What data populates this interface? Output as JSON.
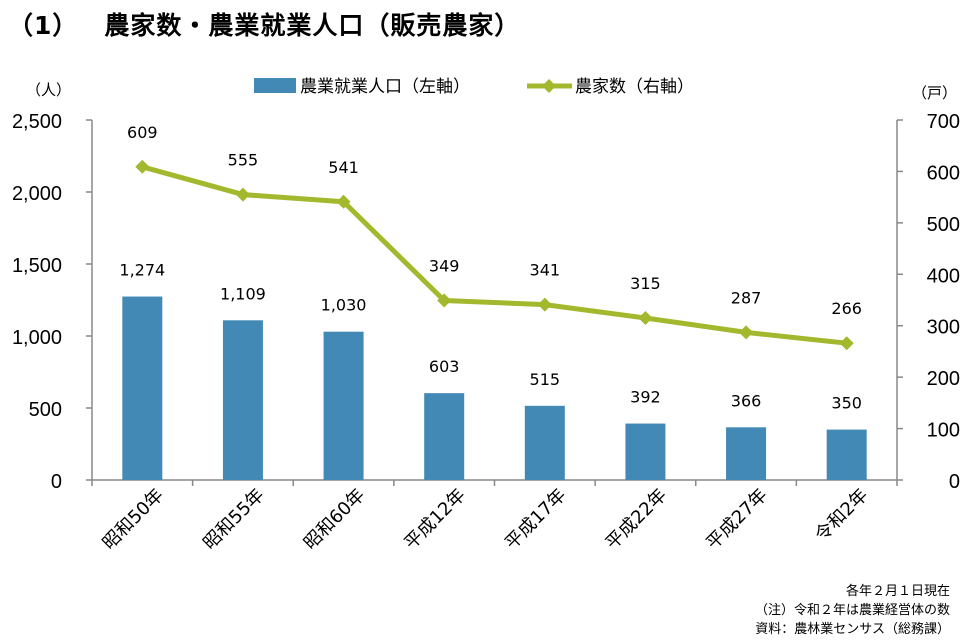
{
  "header": {
    "number": "（1）",
    "title": "農家数・農業就業人口（販売農家）"
  },
  "chart_data": {
    "type": "bar+line",
    "categories": [
      "昭和50年",
      "昭和55年",
      "昭和60年",
      "平成12年",
      "平成17年",
      "平成22年",
      "平成27年",
      "令和2年"
    ],
    "series": [
      {
        "name": "農業就業人口（左軸）",
        "type": "bar",
        "axis": "left",
        "color": "#4289b5",
        "values": [
          1274,
          1109,
          1030,
          603,
          515,
          392,
          366,
          350
        ],
        "labels": [
          "1,274",
          "1,109",
          "1,030",
          "603",
          "515",
          "392",
          "366",
          "350"
        ]
      },
      {
        "name": "農家数（右軸）",
        "type": "line",
        "axis": "right",
        "color": "#a3b82c",
        "marker": "diamond",
        "values": [
          609,
          555,
          541,
          349,
          341,
          315,
          287,
          266
        ],
        "labels": [
          "609",
          "555",
          "541",
          "349",
          "341",
          "315",
          "287",
          "266"
        ]
      }
    ],
    "left_axis": {
      "unit": "（人）",
      "range": [
        0,
        2500
      ],
      "ticks": [
        0,
        500,
        1000,
        1500,
        2000,
        2500
      ],
      "tick_labels": [
        "0",
        "500",
        "1,000",
        "1,500",
        "2,000",
        "2,500"
      ]
    },
    "right_axis": {
      "unit": "（戸）",
      "range": [
        0,
        700
      ],
      "ticks": [
        0,
        100,
        200,
        300,
        400,
        500,
        600,
        700
      ],
      "tick_labels": [
        "0",
        "100",
        "200",
        "300",
        "400",
        "500",
        "600",
        "700"
      ]
    },
    "legend": "top-center",
    "grid": false
  },
  "notes": [
    "各年２月１日現在",
    "（注）令和２年は農業経営体の数",
    "資料：農林業センサス（総務課）"
  ]
}
